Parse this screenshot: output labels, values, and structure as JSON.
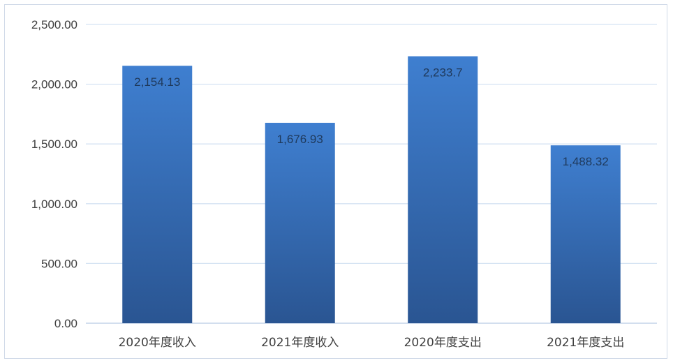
{
  "chart_data": {
    "type": "bar",
    "categories": [
      "2020年度收入",
      "2021年度收入",
      "2020年度支出",
      "2021年度支出"
    ],
    "values": [
      2154.13,
      1676.93,
      2233.7,
      1488.32
    ],
    "data_labels": [
      "2,154.13",
      "1,676.93",
      "2,233.7",
      "1,488.32"
    ],
    "y_ticks": [
      0,
      500,
      1000,
      1500,
      2000,
      2500
    ],
    "y_tick_labels": [
      "0.00",
      "500.00",
      "1,000.00",
      "1,500.00",
      "2,000.00",
      "2,500.00"
    ],
    "ylim": [
      0,
      2500
    ],
    "title": "",
    "xlabel": "",
    "ylabel": "",
    "grid": true,
    "legend": "none",
    "bar_color_top": "#3f7fd0",
    "bar_color_bottom": "#2a5592",
    "grid_color": "#d5e3f3"
  }
}
